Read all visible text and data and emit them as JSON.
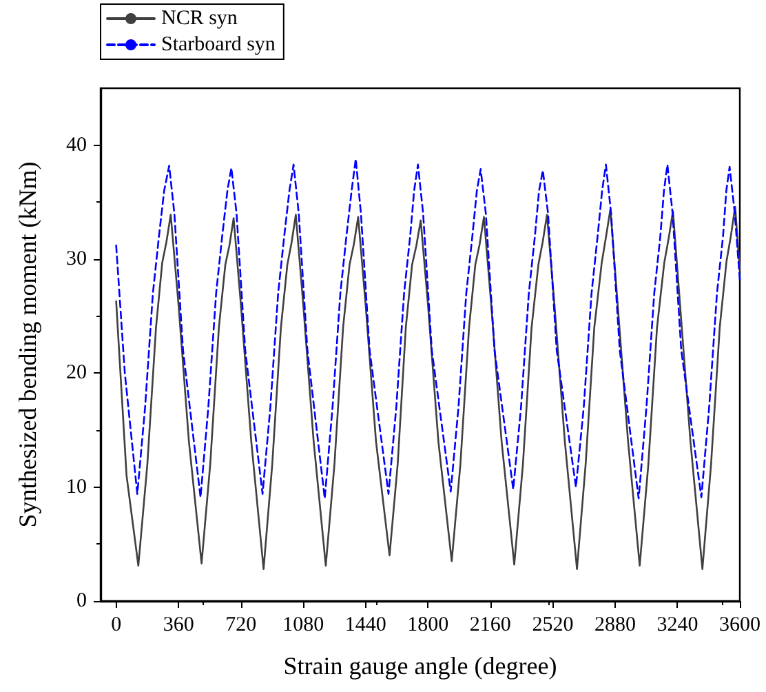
{
  "chart_data": {
    "type": "line",
    "xlabel": "Strain gauge angle (degree)",
    "ylabel": "Synthesized bending moment (kNm)",
    "xlim": [
      -90,
      3600
    ],
    "xticks": [
      0,
      360,
      720,
      1080,
      1440,
      1800,
      2160,
      2520,
      2880,
      3240,
      3600
    ],
    "ylim": [
      0,
      45
    ],
    "yticks": [
      0,
      10,
      20,
      30,
      40
    ],
    "grid": false,
    "legend": "top left",
    "marker": "none",
    "series": [
      {
        "name": "NCR syn",
        "color": "#404040",
        "line_style": "solid",
        "x": [
          0,
          60,
          128,
          180,
          230,
          266,
          290,
          315,
          360,
          420,
          493,
          543,
          593,
          630,
          655,
          678,
          720,
          780,
          851,
          901,
          951,
          988,
          1013,
          1037,
          1080,
          1140,
          1210,
          1260,
          1310,
          1347,
          1372,
          1397,
          1440,
          1500,
          1578,
          1625,
          1672,
          1708,
          1733,
          1758,
          1800,
          1860,
          1937,
          1987,
          2037,
          2073,
          2098,
          2123,
          2165,
          2225,
          2298,
          2348,
          2398,
          2437,
          2462,
          2487,
          2530,
          2590,
          2660,
          2710,
          2760,
          2803,
          2828,
          2853,
          2895,
          2955,
          3022,
          3072,
          3122,
          3164,
          3189,
          3214,
          3255,
          3315,
          3384,
          3434,
          3484,
          3523,
          3548,
          3573,
          3600
        ],
        "values": [
          26.3,
          11,
          3.1,
          12,
          24,
          29.7,
          31.5,
          33.9,
          26,
          14,
          3.3,
          12,
          24,
          29.5,
          31.3,
          33.6,
          26,
          14,
          2.8,
          12,
          24,
          29.5,
          31.5,
          33.9,
          26,
          14,
          3.1,
          12,
          24,
          29.5,
          31.3,
          33.7,
          26,
          14,
          4.0,
          12,
          24,
          29.5,
          31.2,
          33.4,
          26,
          14,
          3.5,
          12,
          24,
          29.5,
          31.3,
          33.7,
          26,
          14,
          3.2,
          12,
          24,
          29.5,
          31.5,
          33.9,
          26,
          14,
          2.8,
          12,
          24,
          29.7,
          32,
          34.4,
          26,
          14,
          3.1,
          12,
          24,
          29.7,
          31.8,
          34.2,
          26,
          14,
          2.8,
          12,
          24,
          29.8,
          32,
          34.6,
          29
        ]
      },
      {
        "name": "Starboard syn",
        "color": "#0000ff",
        "line_style": "dashed",
        "x": [
          0,
          50,
          122,
          167,
          212,
          247,
          277,
          306,
          336,
          386,
          487,
          532,
          577,
          612,
          642,
          665,
          695,
          745,
          845,
          890,
          935,
          970,
          1000,
          1024,
          1054,
          1104,
          1204,
          1249,
          1294,
          1329,
          1359,
          1383,
          1413,
          1463,
          1572,
          1617,
          1662,
          1697,
          1720,
          1742,
          1772,
          1822,
          1931,
          1976,
          2021,
          2056,
          2082,
          2104,
          2134,
          2184,
          2292,
          2337,
          2382,
          2417,
          2441,
          2463,
          2493,
          2543,
          2654,
          2699,
          2744,
          2779,
          2805,
          2827,
          2857,
          2907,
          3016,
          3061,
          3106,
          3141,
          3162,
          3182,
          3212,
          3262,
          3378,
          3423,
          3468,
          3503,
          3522,
          3541,
          3571,
          3600
        ],
        "values": [
          31.2,
          20,
          9.4,
          17,
          27,
          32,
          36,
          38.2,
          34,
          22,
          9.1,
          17,
          27,
          32,
          36,
          38.0,
          34,
          22,
          9.4,
          17,
          27,
          32,
          36,
          38.3,
          34,
          22,
          9.0,
          17,
          27,
          32,
          36,
          38.8,
          34,
          22,
          9.4,
          17,
          27,
          32,
          36,
          38.3,
          34,
          22,
          9.6,
          17,
          27,
          32,
          36,
          37.9,
          34,
          22,
          9.8,
          17,
          27,
          32,
          36,
          37.8,
          34,
          22,
          10.0,
          17,
          27,
          32,
          36,
          38.3,
          34,
          22,
          9.0,
          17,
          27,
          32,
          36,
          38.3,
          34,
          22,
          9.1,
          17,
          27,
          32,
          36,
          38.1,
          34,
          28.2
        ]
      }
    ]
  }
}
